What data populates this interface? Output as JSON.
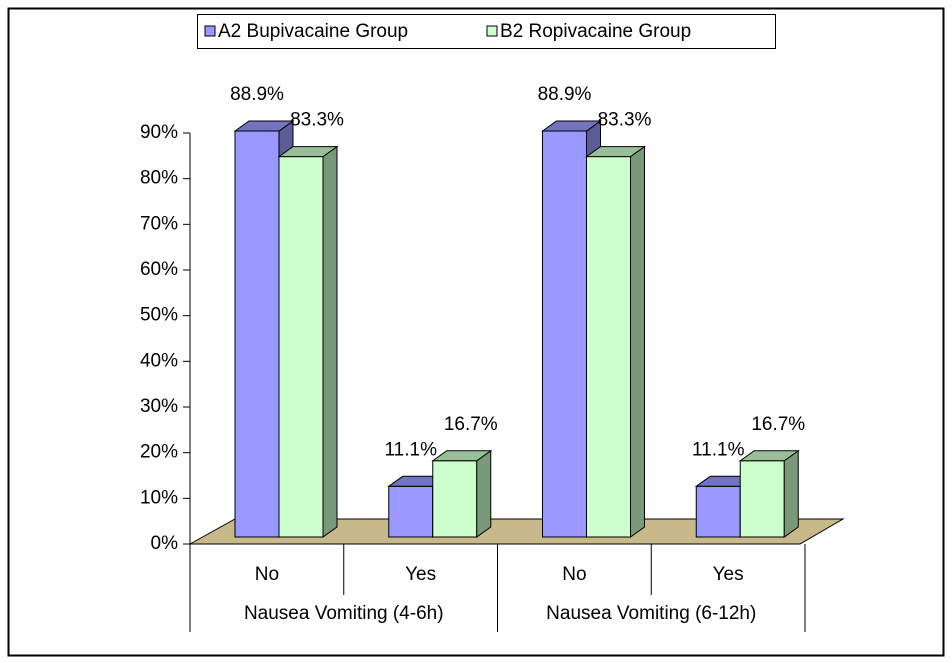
{
  "chart_data": {
    "type": "bar3d",
    "categories": [
      "No",
      "Yes",
      "No",
      "Yes"
    ],
    "groups": [
      "Nausea Vomiting (4-6h)",
      "Nausea Vomiting (6-12h)"
    ],
    "series": [
      {
        "name": "A2 Bupivacaine Group",
        "color": "#9999ff",
        "values": [
          88.9,
          11.1,
          88.9,
          11.1
        ],
        "value_labels": [
          "88.9%",
          "11.1%",
          "88.9%",
          "11.1%"
        ]
      },
      {
        "name": "B2 Ropivacaine Group",
        "color": "#ccffcc",
        "values": [
          83.3,
          16.7,
          83.3,
          16.7
        ],
        "value_labels": [
          "83.3%",
          "16.7%",
          "83.3%",
          "16.7%"
        ]
      }
    ],
    "ylim": [
      0,
      90
    ],
    "yticks": [
      {
        "value": 0,
        "label": "0%"
      },
      {
        "value": 10,
        "label": "10%"
      },
      {
        "value": 20,
        "label": "20%"
      },
      {
        "value": 30,
        "label": "30%"
      },
      {
        "value": 40,
        "label": "40%"
      },
      {
        "value": 50,
        "label": "50%"
      },
      {
        "value": 60,
        "label": "60%"
      },
      {
        "value": 70,
        "label": "70%"
      },
      {
        "value": 80,
        "label": "80%"
      },
      {
        "value": 90,
        "label": "90%"
      }
    ],
    "legend": "top"
  }
}
